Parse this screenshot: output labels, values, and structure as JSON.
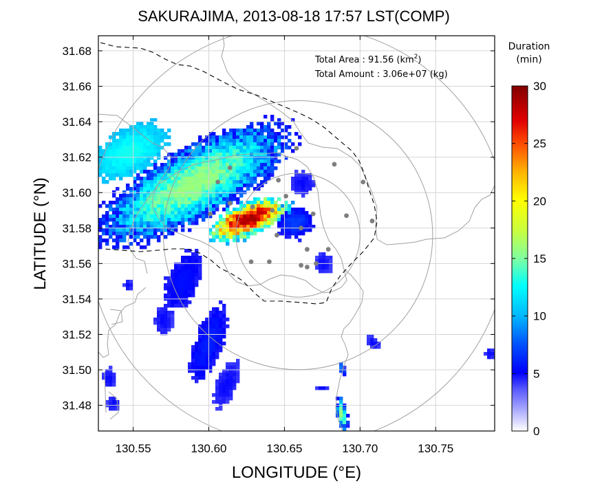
{
  "chart_data": {
    "type": "heatmap",
    "title": "SAKURAJIMA, 2013-08-18 17:57 LST(COMP)",
    "xlabel": "LONGITUDE (°E)",
    "ylabel": "LATITUDE (°N)",
    "xlim": [
      130.527,
      130.789
    ],
    "ylim": [
      31.4655,
      31.6885
    ],
    "xticks": [
      130.55,
      130.6,
      130.65,
      130.7,
      130.75
    ],
    "xtick_labels": [
      "130.55",
      "130.60",
      "130.65",
      "130.70",
      "130.75"
    ],
    "yticks": [
      31.48,
      31.5,
      31.52,
      31.54,
      31.56,
      31.58,
      31.6,
      31.62,
      31.64,
      31.66,
      31.68
    ],
    "ytick_labels": [
      "31.48",
      "31.50",
      "31.52",
      "31.54",
      "31.56",
      "31.58",
      "31.60",
      "31.62",
      "31.64",
      "31.66",
      "31.68"
    ],
    "grid": true,
    "annotations": {
      "area_label": "Total Area   : 91.56 (km",
      "area_sup": "2",
      "area_close": ")",
      "amount_label": "Total Amount : 3.06e+07 (kg)"
    },
    "colorbar": {
      "title_line1": "Duration",
      "title_line2": "(min)",
      "range": [
        0,
        30
      ],
      "ticks": [
        0,
        5,
        10,
        15,
        20,
        25,
        30
      ],
      "tick_labels": [
        "0",
        "5",
        "10",
        "15",
        "20",
        "25",
        "30"
      ]
    },
    "range_circles": {
      "center": [
        130.659,
        31.576
      ],
      "radii_deg_lon": [
        0.041,
        0.089,
        0.139
      ]
    },
    "vent_markers": [
      [
        130.658,
        31.625
      ],
      [
        130.683,
        31.616
      ],
      [
        130.614,
        31.614
      ],
      [
        130.606,
        31.606
      ],
      [
        130.646,
        31.607
      ],
      [
        130.702,
        31.606
      ],
      [
        130.651,
        31.598
      ],
      [
        130.614,
        31.594
      ],
      [
        130.629,
        31.592
      ],
      [
        130.642,
        31.59
      ],
      [
        130.601,
        31.588
      ],
      [
        130.669,
        31.588
      ],
      [
        130.691,
        31.587
      ],
      [
        130.708,
        31.584
      ],
      [
        130.661,
        31.58
      ],
      [
        130.645,
        31.576
      ],
      [
        130.679,
        31.568
      ],
      [
        130.665,
        31.568
      ],
      [
        130.628,
        31.561
      ],
      [
        130.64,
        31.561
      ],
      [
        130.661,
        31.559
      ],
      [
        130.671,
        31.56
      ],
      [
        130.665,
        31.558
      ]
    ],
    "ash_plumes": [
      {
        "name": "main-plume",
        "cx": 130.59,
        "cy": 31.605,
        "a": 0.068,
        "b": 0.021,
        "angle": -24,
        "peak": 16,
        "edge": 4.5
      },
      {
        "name": "plume-core",
        "cx": 130.626,
        "cy": 31.585,
        "a": 0.027,
        "b": 0.0095,
        "angle": -18,
        "peak": 29,
        "edge": 9
      },
      {
        "name": "west-core",
        "cx": 130.548,
        "cy": 31.623,
        "a": 0.026,
        "b": 0.013,
        "angle": -25,
        "peak": 13,
        "edge": 10
      },
      {
        "name": "plume-tip",
        "cx": 130.657,
        "cy": 31.583,
        "a": 0.012,
        "b": 0.009,
        "angle": 0,
        "peak": 7,
        "edge": 4.5
      },
      {
        "name": "north-lobe",
        "cx": 130.662,
        "cy": 31.605,
        "a": 0.008,
        "b": 0.007,
        "angle": 0,
        "peak": 5,
        "edge": 4
      },
      {
        "name": "south-blob",
        "cx": 130.676,
        "cy": 31.56,
        "a": 0.006,
        "b": 0.006,
        "angle": 0,
        "peak": 5,
        "edge": 4
      },
      {
        "name": "band-north",
        "cx": 130.583,
        "cy": 31.55,
        "a": 0.018,
        "b": 0.01,
        "angle": -62,
        "peak": 5.5,
        "edge": 4.5
      },
      {
        "name": "band-mid",
        "cx": 130.6,
        "cy": 31.515,
        "a": 0.022,
        "b": 0.009,
        "angle": -65,
        "peak": 6,
        "edge": 4.5
      },
      {
        "name": "band-south",
        "cx": 130.612,
        "cy": 31.492,
        "a": 0.014,
        "b": 0.007,
        "angle": -65,
        "peak": 5,
        "edge": 4
      },
      {
        "name": "band-west",
        "cx": 130.57,
        "cy": 31.528,
        "a": 0.006,
        "b": 0.009,
        "angle": 0,
        "peak": 5,
        "edge": 4
      },
      {
        "name": "spot-sw1",
        "cx": 130.534,
        "cy": 31.495,
        "a": 0.004,
        "b": 0.006,
        "angle": 0,
        "peak": 5,
        "edge": 4
      },
      {
        "name": "spot-sw2",
        "cx": 130.537,
        "cy": 31.481,
        "a": 0.004,
        "b": 0.004,
        "angle": 0,
        "peak": 5,
        "edge": 4
      },
      {
        "name": "spot-w",
        "cx": 130.547,
        "cy": 31.548,
        "a": 0.003,
        "b": 0.003,
        "angle": 0,
        "peak": 5,
        "edge": 4
      },
      {
        "name": "spot-e1",
        "cx": 130.709,
        "cy": 31.515,
        "a": 0.003,
        "b": 0.005,
        "angle": -60,
        "peak": 5,
        "edge": 4
      },
      {
        "name": "spot-e2",
        "cx": 130.688,
        "cy": 31.501,
        "a": 0.002,
        "b": 0.005,
        "angle": -20,
        "peak": 9,
        "edge": 4
      },
      {
        "name": "spot-s",
        "cx": 130.688,
        "cy": 31.475,
        "a": 0.0035,
        "b": 0.01,
        "angle": -10,
        "peak": 16,
        "edge": 4
      },
      {
        "name": "spot-far-e",
        "cx": 130.786,
        "cy": 31.509,
        "a": 0.004,
        "b": 0.003,
        "angle": 0,
        "peak": 5,
        "edge": 4
      },
      {
        "name": "spot-e3",
        "cx": 130.675,
        "cy": 31.49,
        "a": 0.004,
        "b": 0.0015,
        "angle": 0,
        "peak": 5,
        "edge": 4
      }
    ]
  }
}
